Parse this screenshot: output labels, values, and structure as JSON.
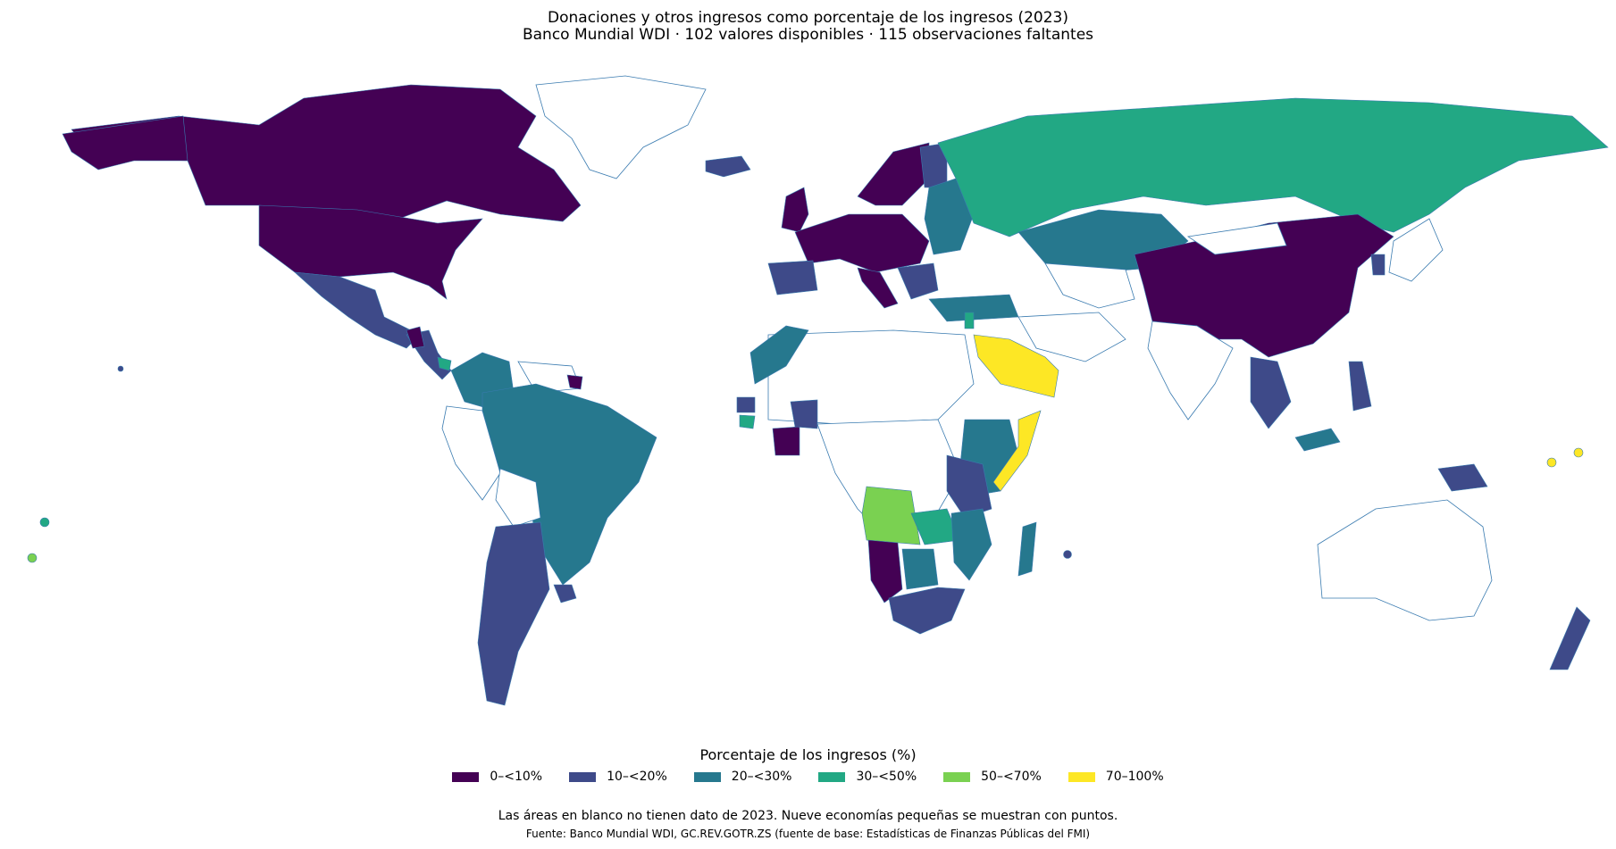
{
  "title": "Donaciones y otros ingresos como porcentaje de los ingresos (2023)",
  "subtitle": "Banco Mundial WDI · 102 valores disponibles · 115 observaciones faltantes",
  "legend": {
    "title": "Porcentaje de los ingresos (%)",
    "items": [
      {
        "label": "0–<10%",
        "color": "#440154"
      },
      {
        "label": "10–<20%",
        "color": "#3e4a89"
      },
      {
        "label": "20–<30%",
        "color": "#26788e"
      },
      {
        "label": "30–<50%",
        "color": "#22a884"
      },
      {
        "label": "50–<70%",
        "color": "#7ad151"
      },
      {
        "label": "70–100%",
        "color": "#fde725"
      }
    ]
  },
  "note": "Las áreas en blanco no tienen dato de 2023. Nueve economías pequeñas se muestran con puntos.",
  "source": "Fuente: Banco Mundial WDI, GC.REV.GOTR.ZS (fuente de base: Estadísticas de Finanzas Públicas del FMI)",
  "colors": {
    "no_data": "#ffffff",
    "border": "#3a7bb0"
  }
}
